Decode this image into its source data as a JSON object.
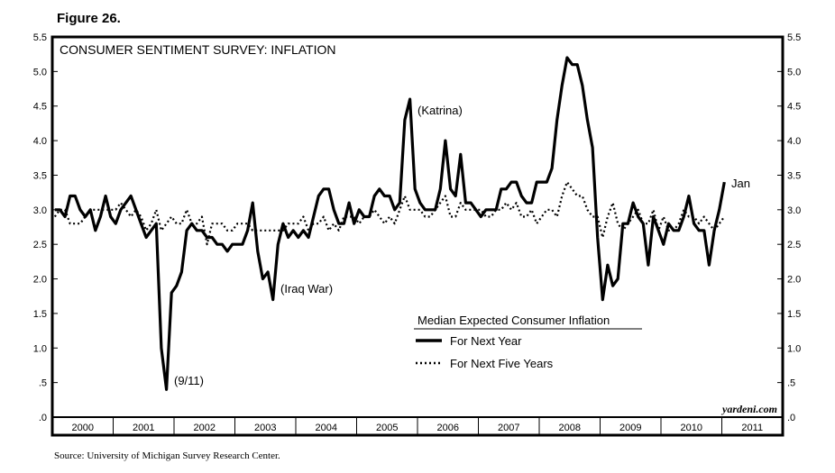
{
  "figure_label": "Figure 26.",
  "source": "Source: University of Michigan Survey Research Center.",
  "watermark": "yardeni.com",
  "chart_data": {
    "type": "line",
    "title": "CONSUMER SENTIMENT SURVEY: INFLATION",
    "ylim": [
      0,
      5.5
    ],
    "y_ticks": [
      ".0",
      ".5",
      "1.0",
      "1.5",
      "2.0",
      "2.5",
      "3.0",
      "3.5",
      "4.0",
      "4.5",
      "5.0",
      "5.5"
    ],
    "x_tick_labels": [
      "2000",
      "2001",
      "2002",
      "2003",
      "2004",
      "2005",
      "2006",
      "2007",
      "2008",
      "2009",
      "2010",
      "2011"
    ],
    "x_start": "2000-01",
    "x_frequency": "monthly",
    "legend": {
      "title": "Median Expected Consumer Inflation",
      "placement": "bottom-center"
    },
    "annotations": [
      "(9/11)",
      "(Iraq War)",
      "(Katrina)",
      "Jan"
    ],
    "series": [
      {
        "name": "For Next Year",
        "style": "solid",
        "values": [
          3.0,
          3.0,
          2.9,
          3.2,
          3.2,
          3.0,
          2.9,
          3.0,
          2.7,
          2.9,
          3.2,
          2.9,
          2.8,
          3.0,
          3.1,
          3.2,
          3.0,
          2.8,
          2.6,
          2.7,
          2.8,
          1.0,
          0.4,
          1.8,
          1.9,
          2.1,
          2.7,
          2.8,
          2.7,
          2.7,
          2.6,
          2.6,
          2.5,
          2.5,
          2.4,
          2.5,
          2.5,
          2.5,
          2.7,
          3.1,
          2.4,
          2.0,
          2.1,
          1.7,
          2.5,
          2.8,
          2.6,
          2.7,
          2.6,
          2.7,
          2.6,
          2.9,
          3.2,
          3.3,
          3.3,
          3.0,
          2.8,
          2.8,
          3.1,
          2.8,
          3.0,
          2.9,
          2.9,
          3.2,
          3.3,
          3.2,
          3.2,
          3.0,
          3.1,
          4.3,
          4.6,
          3.3,
          3.1,
          3.0,
          3.0,
          3.0,
          3.3,
          4.0,
          3.3,
          3.2,
          3.8,
          3.1,
          3.1,
          3.0,
          2.9,
          3.0,
          3.0,
          3.0,
          3.3,
          3.3,
          3.4,
          3.4,
          3.2,
          3.1,
          3.1,
          3.4,
          3.4,
          3.4,
          3.6,
          4.3,
          4.8,
          5.2,
          5.1,
          5.1,
          4.8,
          4.3,
          3.9,
          2.6,
          1.7,
          2.2,
          1.9,
          2.0,
          2.8,
          2.8,
          3.1,
          2.9,
          2.8,
          2.2,
          2.9,
          2.7,
          2.5,
          2.8,
          2.7,
          2.7,
          2.9,
          3.2,
          2.8,
          2.7,
          2.7,
          2.2,
          2.7,
          3.0,
          3.4
        ]
      },
      {
        "name": "For Next Five Years",
        "style": "dotted",
        "values": [
          2.9,
          3.0,
          3.0,
          2.8,
          2.8,
          2.8,
          2.9,
          3.0,
          3.0,
          3.0,
          3.0,
          3.0,
          3.0,
          3.1,
          3.0,
          2.9,
          3.0,
          2.9,
          2.7,
          2.8,
          3.0,
          2.7,
          2.8,
          2.9,
          2.8,
          2.8,
          3.0,
          2.8,
          2.8,
          2.9,
          2.5,
          2.8,
          2.8,
          2.8,
          2.7,
          2.7,
          2.8,
          2.8,
          2.8,
          2.7,
          2.7,
          2.7,
          2.7,
          2.7,
          2.7,
          2.7,
          2.8,
          2.8,
          2.8,
          2.9,
          2.7,
          2.8,
          2.8,
          2.9,
          2.7,
          2.8,
          2.7,
          2.9,
          2.9,
          2.9,
          2.8,
          2.9,
          2.9,
          3.0,
          2.9,
          2.8,
          2.9,
          2.8,
          3.0,
          3.2,
          3.0,
          3.0,
          3.0,
          2.9,
          2.9,
          3.0,
          3.1,
          3.2,
          2.9,
          2.9,
          3.1,
          3.0,
          3.0,
          3.0,
          3.0,
          2.9,
          2.9,
          3.0,
          3.0,
          3.1,
          3.0,
          3.1,
          2.9,
          2.9,
          3.0,
          2.8,
          2.9,
          3.0,
          3.0,
          2.9,
          3.2,
          3.4,
          3.3,
          3.2,
          3.2,
          3.0,
          2.9,
          2.9,
          2.6,
          2.9,
          3.1,
          2.8,
          2.7,
          2.8,
          2.9,
          3.0,
          2.8,
          2.8,
          3.0,
          2.7,
          2.9,
          2.7,
          2.7,
          2.8,
          3.0,
          2.9,
          2.9,
          2.8,
          2.9,
          2.8,
          2.7,
          2.8,
          2.9
        ]
      }
    ]
  }
}
